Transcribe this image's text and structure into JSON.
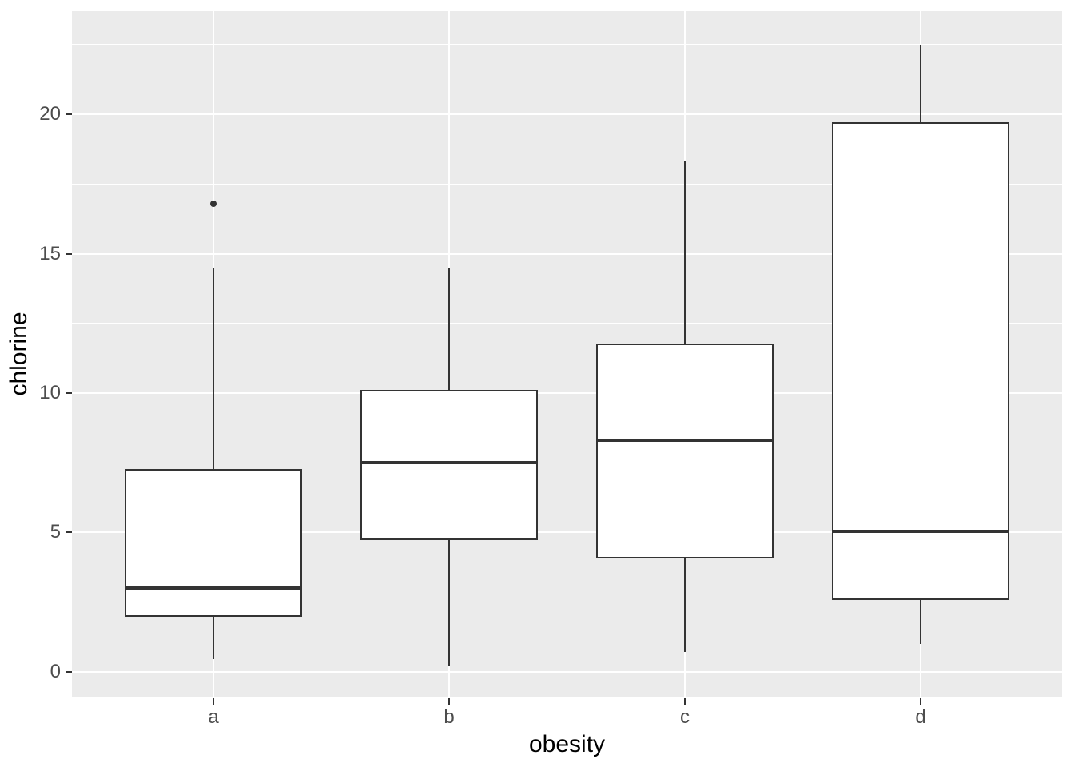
{
  "chart_data": {
    "type": "boxplot",
    "title": "",
    "xlabel": "obesity",
    "ylabel": "chlorine",
    "categories": [
      "a",
      "b",
      "c",
      "d"
    ],
    "series": [
      {
        "category": "a",
        "whisker_low": 0.45,
        "q1": 2.0,
        "median": 3.0,
        "q3": 7.25,
        "whisker_high": 14.5,
        "outliers": [
          16.8
        ]
      },
      {
        "category": "b",
        "whisker_low": 0.2,
        "q1": 4.75,
        "median": 7.5,
        "q3": 10.1,
        "whisker_high": 14.5,
        "outliers": []
      },
      {
        "category": "c",
        "whisker_low": 0.7,
        "q1": 4.1,
        "median": 8.3,
        "q3": 11.75,
        "whisker_high": 18.3,
        "outliers": []
      },
      {
        "category": "d",
        "whisker_low": 1.0,
        "q1": 2.6,
        "median": 5.05,
        "q3": 19.7,
        "whisker_high": 22.5,
        "outliers": []
      }
    ],
    "y_ticks": [
      0,
      5,
      10,
      15,
      20
    ],
    "y_tick_labels": [
      "0",
      "5",
      "10",
      "15",
      "20"
    ],
    "y_minor_gridlines": [
      2.5,
      7.5,
      12.5,
      17.5,
      22.5
    ],
    "ylim": [
      -0.92,
      23.7
    ],
    "x_tick_labels": [
      "a",
      "b",
      "c",
      "d"
    ],
    "box_width_fraction": 0.75,
    "grid": "major-and-minor",
    "legend": "none"
  },
  "colors": {
    "panel_bg": "#EBEBEB",
    "gridline": "#FFFFFF",
    "box_stroke": "#333333",
    "box_fill": "#FFFFFF",
    "outlier": "#333333",
    "tick_mark": "#333333",
    "tick_label": "#4D4D4D",
    "axis_title": "#000000"
  }
}
